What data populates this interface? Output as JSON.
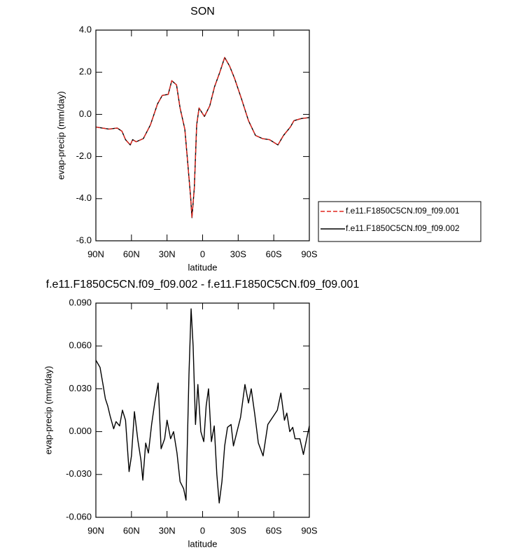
{
  "chart_data": [
    {
      "type": "line",
      "title": "SON",
      "xlabel": "latitude",
      "ylabel": "evap-precip (mm/day)",
      "x": [
        90,
        79,
        72,
        68,
        65,
        61,
        59,
        56,
        50,
        44,
        38,
        34,
        29,
        26,
        22,
        19,
        15,
        13,
        10,
        9,
        7,
        5,
        3,
        -1.5,
        -6,
        -10,
        -14.5,
        -18.6,
        -22.7,
        -27,
        -33,
        -38.7,
        -44.6,
        -50.5,
        -56.4,
        -63.5,
        -68.2,
        -74,
        -77,
        -83,
        -90
      ],
      "xlim": [
        90,
        -90
      ],
      "xticks": [
        {
          "value": 90,
          "label": "90N"
        },
        {
          "value": 60,
          "label": "60N"
        },
        {
          "value": 30,
          "label": "30N"
        },
        0,
        {
          "value": -30,
          "label": "30S"
        },
        {
          "value": -60,
          "label": "60S"
        },
        {
          "value": -90,
          "label": "90S"
        }
      ],
      "ylim": [
        -6,
        4
      ],
      "yticks": [
        {
          "value": -6,
          "label": "-6.0"
        },
        {
          "value": -4,
          "label": "-4.0"
        },
        {
          "value": -2,
          "label": "-2.0"
        },
        {
          "value": 0,
          "label": "0.0"
        },
        {
          "value": 2,
          "label": "2.0"
        },
        {
          "value": 4,
          "label": "4.0"
        }
      ],
      "legend": "right",
      "series": [
        {
          "name": "f.e11.F1850C5CN.f09_f09.001",
          "color": "#e0261e",
          "line_style": "dashed",
          "values": [
            -0.6,
            -0.7,
            -0.65,
            -0.8,
            -1.2,
            -1.45,
            -1.2,
            -1.3,
            -1.15,
            -0.5,
            0.5,
            0.9,
            0.95,
            1.6,
            1.4,
            0.3,
            -0.7,
            -2.0,
            -4.0,
            -4.9,
            -3.5,
            -0.5,
            0.3,
            -0.1,
            0.4,
            1.3,
            2.0,
            2.7,
            2.3,
            1.7,
            0.7,
            -0.3,
            -1.0,
            -1.15,
            -1.2,
            -1.45,
            -1.0,
            -0.6,
            -0.3,
            -0.2,
            -0.15
          ]
        },
        {
          "name": "f.e11.F1850C5CN.f09_f09.002",
          "color": "#000000",
          "line_style": "solid",
          "values": [
            -0.6,
            -0.7,
            -0.65,
            -0.8,
            -1.2,
            -1.45,
            -1.2,
            -1.3,
            -1.15,
            -0.5,
            0.5,
            0.9,
            0.95,
            1.6,
            1.4,
            0.3,
            -0.7,
            -2.0,
            -4.0,
            -4.9,
            -3.5,
            -0.5,
            0.3,
            -0.1,
            0.4,
            1.3,
            2.0,
            2.7,
            2.3,
            1.7,
            0.7,
            -0.3,
            -1.0,
            -1.15,
            -1.2,
            -1.45,
            -1.0,
            -0.6,
            -0.3,
            -0.2,
            -0.15
          ]
        }
      ]
    },
    {
      "type": "line",
      "title": "f.e11.F1850C5CN.f09_f09.002 - f.e11.F1850C5CN.f09_f09.001",
      "xlabel": "latitude",
      "ylabel": "evap-precip (mm/day)",
      "x": [
        90,
        86.5,
        84,
        82,
        80,
        78,
        75,
        73,
        70,
        67.6,
        65,
        62,
        60,
        57.5,
        54.6,
        52,
        50.4,
        48,
        45.7,
        43,
        40.4,
        37.5,
        35,
        32,
        30,
        27,
        24.5,
        21.6,
        19,
        16,
        14,
        11.5,
        9.7,
        8,
        6,
        4,
        1.5,
        -1,
        -3,
        -5,
        -7.4,
        -9.8,
        -12,
        -14,
        -16.3,
        -18.6,
        -21,
        -24,
        -26,
        -29,
        -32,
        -35.7,
        -38.7,
        -41,
        -44,
        -47,
        -51,
        -55,
        -59,
        -63,
        -66,
        -69,
        -71,
        -73.5,
        -76,
        -78,
        -82,
        -85,
        -90
      ],
      "values": [
        0.05,
        0.045,
        0.033,
        0.023,
        0.018,
        0.011,
        0.002,
        0.007,
        0.004,
        0.015,
        0.008,
        -0.028,
        -0.017,
        0.014,
        -0.006,
        -0.02,
        -0.034,
        -0.008,
        -0.015,
        0.005,
        0.02,
        0.034,
        -0.012,
        -0.005,
        0.008,
        -0.005,
        0,
        -0.015,
        -0.035,
        -0.04,
        -0.048,
        0.04,
        0.086,
        0.06,
        0.005,
        0.033,
        0,
        -0.007,
        0.018,
        0.03,
        -0.007,
        0.004,
        -0.03,
        -0.05,
        -0.035,
        -0.01,
        0.003,
        0.005,
        -0.01,
        0,
        0.01,
        0.033,
        0.02,
        0.03,
        0.012,
        -0.008,
        -0.017,
        0.005,
        0.01,
        0.015,
        0.027,
        0.008,
        0.013,
        0,
        0.003,
        -0.005,
        -0.005,
        -0.016,
        0.004
      ],
      "color": "#000000",
      "xlim": [
        90,
        -90
      ],
      "xticks": [
        {
          "value": 90,
          "label": "90N"
        },
        {
          "value": 60,
          "label": "60N"
        },
        {
          "value": 30,
          "label": "30N"
        },
        0,
        {
          "value": -30,
          "label": "30S"
        },
        {
          "value": -60,
          "label": "60S"
        },
        {
          "value": -90,
          "label": "90S"
        }
      ],
      "ylim": [
        -0.06,
        0.09
      ],
      "yticks": [
        {
          "value": -0.06,
          "label": "-0.060"
        },
        {
          "value": -0.03,
          "label": "-0.030"
        },
        {
          "value": 0,
          "label": "0.000"
        },
        {
          "value": 0.03,
          "label": "0.030"
        },
        {
          "value": 0.06,
          "label": "0.060"
        },
        {
          "value": 0.09,
          "label": "0.090"
        }
      ]
    }
  ]
}
